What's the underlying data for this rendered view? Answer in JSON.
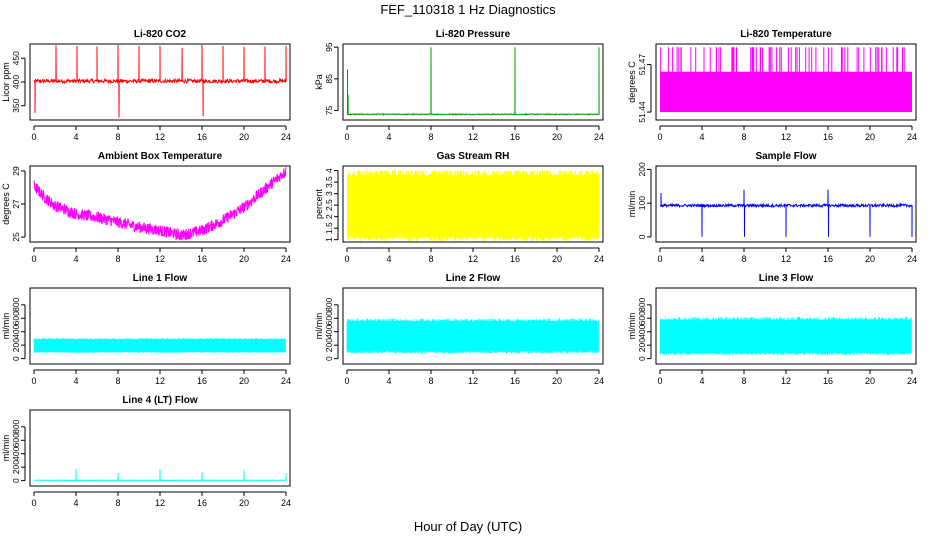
{
  "figure": {
    "title": "FEF_110318  1 Hz Diagnostics",
    "xlabel": "Hour of Day (UTC)"
  },
  "chart_data": [
    {
      "type": "line",
      "title": "Li-820 CO2",
      "ylabel": "Licor ppm",
      "color": "#ff0000",
      "xlim": [
        0,
        24
      ],
      "ylim": [
        320,
        480
      ],
      "xticks": [
        0,
        4,
        8,
        12,
        16,
        20,
        24
      ],
      "yticks": [
        350,
        400,
        450
      ],
      "pattern": "spiky",
      "baseline": 402,
      "noise": 4,
      "spikes": [
        [
          0.1,
          335
        ],
        [
          2.1,
          478
        ],
        [
          4.1,
          476
        ],
        [
          6.0,
          475
        ],
        [
          8.0,
          478
        ],
        [
          8.1,
          325
        ],
        [
          10.0,
          476
        ],
        [
          12.0,
          476
        ],
        [
          14.1,
          472
        ],
        [
          16.0,
          478
        ],
        [
          16.1,
          328
        ],
        [
          18.0,
          476
        ],
        [
          20.0,
          474
        ],
        [
          22.0,
          475
        ],
        [
          24.0,
          476
        ]
      ]
    },
    {
      "type": "line",
      "title": "Li-820 Pressure",
      "ylabel": "kPa",
      "color": "#00a000",
      "xlim": [
        0,
        24
      ],
      "ylim": [
        72,
        96
      ],
      "xticks": [
        0,
        4,
        8,
        12,
        16,
        20,
        24
      ],
      "yticks": [
        75,
        85,
        95
      ],
      "pattern": "spiky",
      "baseline": 73.8,
      "noise": 0.15,
      "spikes": [
        [
          0.05,
          88
        ],
        [
          0.1,
          80
        ],
        [
          8.0,
          95
        ],
        [
          16.0,
          95
        ],
        [
          24.0,
          95
        ]
      ]
    },
    {
      "type": "line",
      "title": "Li-820 Temperature",
      "ylabel": "degrees C",
      "color": "#ff00ff",
      "xlim": [
        0,
        24
      ],
      "ylim": [
        51.435,
        51.483
      ],
      "xticks": [
        0,
        4,
        8,
        12,
        16,
        20,
        24
      ],
      "yticks": [
        51.44,
        51.47
      ],
      "pattern": "band",
      "low": 51.44,
      "high": 51.4655,
      "spikes_to": 51.481,
      "spike_count": 70
    },
    {
      "type": "line",
      "title": "Ambient Box Temperature",
      "ylabel": "degrees C",
      "color": "#ff00ff",
      "xlim": [
        0,
        24
      ],
      "ylim": [
        24.7,
        29.3
      ],
      "xticks": [
        0,
        4,
        8,
        12,
        16,
        20,
        24
      ],
      "yticks": [
        25,
        27,
        29
      ],
      "pattern": "trend",
      "x": [
        0,
        1,
        2,
        4,
        6,
        8,
        10,
        12,
        14,
        16,
        18,
        20,
        22,
        24
      ],
      "y": [
        28.1,
        27.4,
        26.9,
        26.4,
        26.2,
        25.9,
        25.6,
        25.4,
        25.1,
        25.4,
        26.0,
        26.8,
        27.9,
        29.0
      ],
      "noise": 0.35
    },
    {
      "type": "line",
      "title": "Gas Stream RH",
      "ylabel": "percent",
      "color": "#ffff00",
      "xlim": [
        0,
        24
      ],
      "ylim": [
        0.9,
        4.2
      ],
      "xticks": [
        0,
        4,
        8,
        12,
        16,
        20,
        24
      ],
      "yticks": [
        1.0,
        1.5,
        2.0,
        2.5,
        3.0,
        3.5,
        4.0
      ],
      "pattern": "band",
      "low": 1.1,
      "high": 3.8,
      "spikes_to": 4.0,
      "spike_count": 40,
      "fill_density": 300
    },
    {
      "type": "line",
      "title": "Sample Flow",
      "ylabel": "ml/min",
      "color": "#0000ff",
      "xlim": [
        0,
        24
      ],
      "ylim": [
        -15,
        210
      ],
      "xticks": [
        0,
        4,
        8,
        12,
        16,
        20,
        24
      ],
      "yticks": [
        0,
        100,
        200
      ],
      "pattern": "spiky",
      "baseline": 93,
      "noise": 4,
      "spikes": [
        [
          0.1,
          130
        ],
        [
          4.0,
          0
        ],
        [
          8.0,
          140
        ],
        [
          8.05,
          0
        ],
        [
          12.0,
          0
        ],
        [
          16.0,
          140
        ],
        [
          16.05,
          0
        ],
        [
          20.0,
          0
        ],
        [
          24.0,
          0
        ]
      ]
    },
    {
      "type": "line",
      "title": "Line 1 Flow",
      "ylabel": "ml/min",
      "color": "#00ffff",
      "xlim": [
        0,
        24
      ],
      "ylim": [
        -80,
        1050
      ],
      "xticks": [
        0,
        4,
        8,
        12,
        16,
        20,
        24
      ],
      "yticks": [
        0,
        200,
        400,
        600,
        800
      ],
      "pattern": "band",
      "low": 100,
      "high": 290,
      "gaps": [
        4.0,
        8.0,
        12.0,
        16.0,
        20.0,
        24.0
      ],
      "fill_density": 500
    },
    {
      "type": "line",
      "title": "Line 2 Flow",
      "ylabel": "ml/min",
      "color": "#00ffff",
      "xlim": [
        0,
        24
      ],
      "ylim": [
        -80,
        1050
      ],
      "xticks": [
        0,
        4,
        8,
        12,
        16,
        20,
        24
      ],
      "yticks": [
        0,
        200,
        400,
        600,
        800
      ],
      "pattern": "band",
      "low": 110,
      "high": 560,
      "gaps": [
        4.0,
        8.0,
        12.0,
        16.0,
        20.0,
        24.0
      ],
      "fill_density": 500
    },
    {
      "type": "line",
      "title": "Line 3 Flow",
      "ylabel": "ml/min",
      "color": "#00ffff",
      "xlim": [
        0,
        24
      ],
      "ylim": [
        -80,
        1050
      ],
      "xticks": [
        0,
        4,
        8,
        12,
        16,
        20,
        24
      ],
      "yticks": [
        0,
        200,
        400,
        600,
        800
      ],
      "pattern": "band",
      "low": 90,
      "high": 580,
      "gaps": [
        4.0,
        8.0,
        12.0,
        16.0,
        20.0,
        24.0
      ],
      "fill_density": 500
    },
    {
      "type": "line",
      "title": "Line 4 (LT) Flow",
      "ylabel": "ml/min",
      "color": "#00ffff",
      "xlim": [
        0,
        24
      ],
      "ylim": [
        -80,
        1050
      ],
      "xticks": [
        0,
        4,
        8,
        12,
        16,
        20,
        24
      ],
      "yticks": [
        0,
        200,
        400,
        600,
        800
      ],
      "pattern": "spiky",
      "baseline": 5,
      "noise": 2,
      "spikes": [
        [
          4.0,
          180
        ],
        [
          8.0,
          110
        ],
        [
          12.0,
          170
        ],
        [
          16.0,
          120
        ],
        [
          20.0,
          160
        ],
        [
          24.0,
          110
        ]
      ]
    }
  ]
}
